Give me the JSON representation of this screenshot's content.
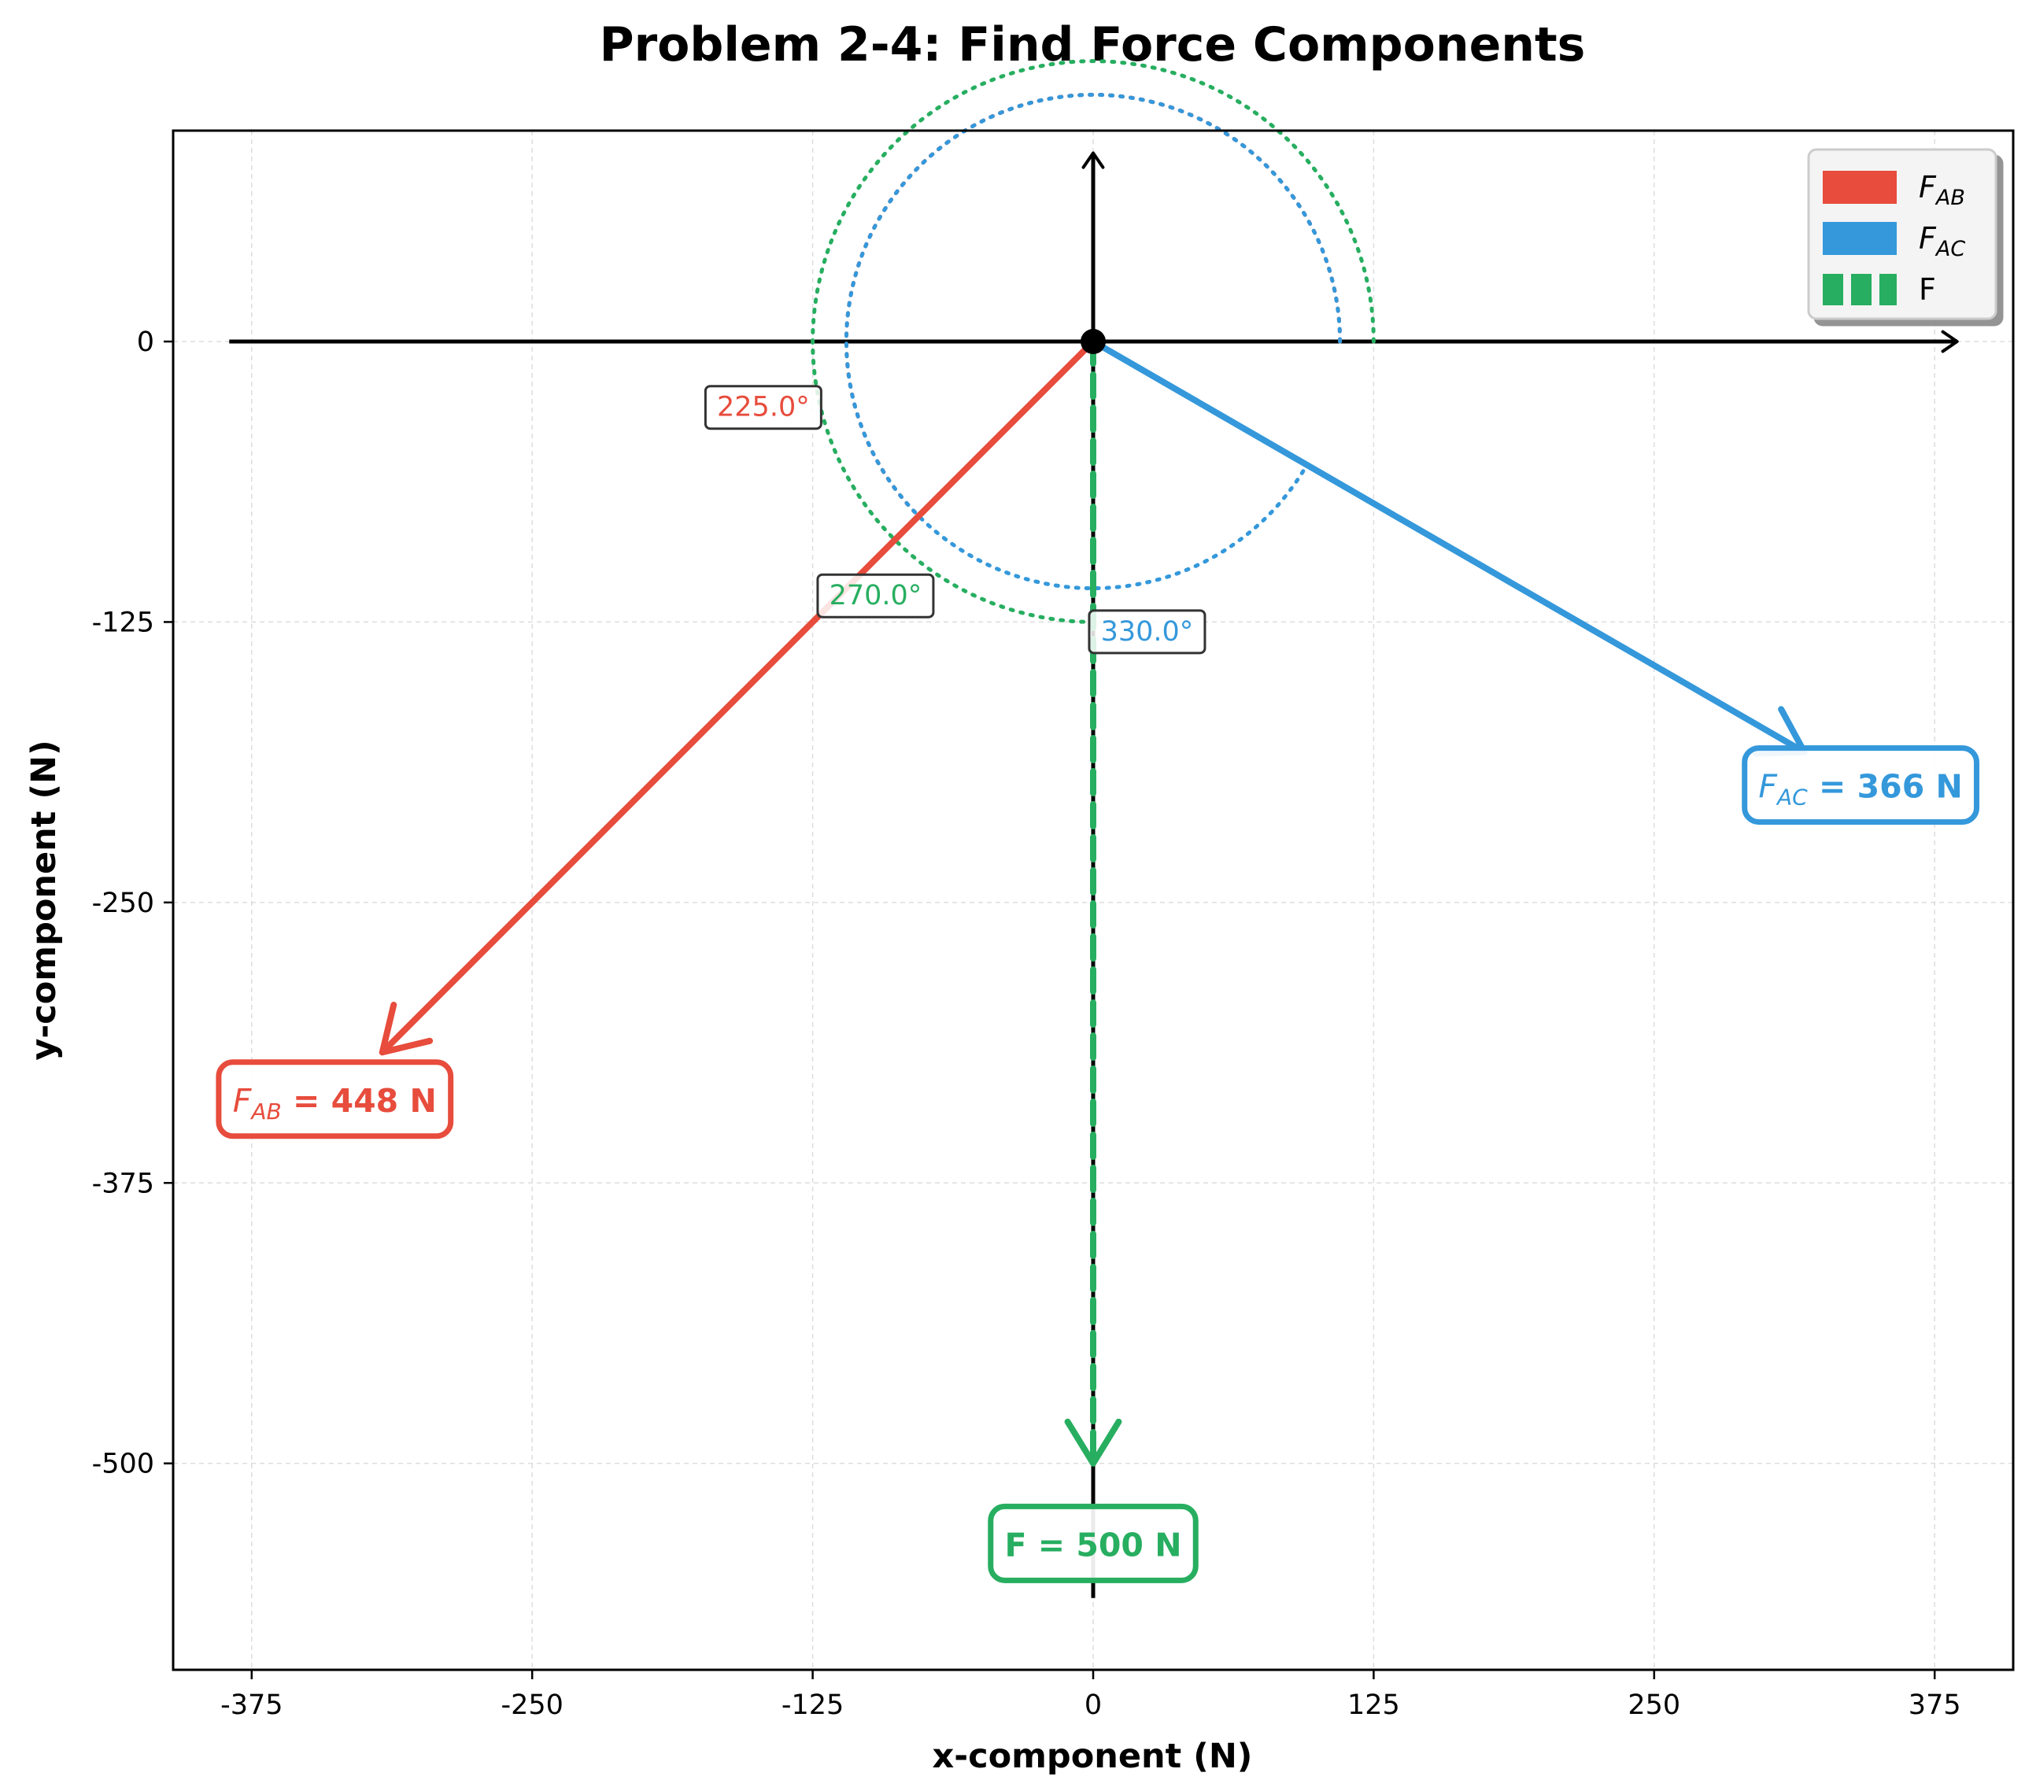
{
  "chart_data": {
    "type": "vector",
    "title": "Problem 2-4: Find Force Components",
    "xlabel": "x-component (N)",
    "ylabel": "y-component (N)",
    "xlim": [
      -410,
      410
    ],
    "ylim": [
      -592,
      94
    ],
    "xticks": [
      -375,
      -250,
      -125,
      0,
      125,
      250,
      375
    ],
    "xtick_labels": [
      "-375",
      "-250",
      "-125",
      "0",
      "125",
      "250",
      "375"
    ],
    "yticks": [
      0,
      -125,
      -250,
      -375,
      -500
    ],
    "ytick_labels": [
      "0",
      "-125",
      "-250",
      "-375",
      "-500"
    ],
    "grid": true,
    "legend_position": "top-right",
    "origin": [
      0,
      0
    ],
    "reference_axes": {
      "x_from": -385,
      "x_to": 385,
      "y_from": -560,
      "y_to": 84
    },
    "forces": [
      {
        "key": "fab",
        "legend_main": "F",
        "legend_sub": "AB",
        "label_main": "F",
        "label_sub": "AB",
        "label_value": " = 448 N",
        "magnitude": 448,
        "angle_deg": 225.0,
        "angle_label": "225.0°",
        "color": "#e74c3c",
        "dashed": false,
        "arc_radius": 110,
        "label_at": [
          -338,
          -338
        ],
        "angle_label_at": [
          -147,
          -29
        ]
      },
      {
        "key": "fac",
        "legend_main": "F",
        "legend_sub": "AC",
        "label_main": "F",
        "label_sub": "AC",
        "label_value": " = 366 N",
        "magnitude": 366,
        "angle_deg": 330.0,
        "angle_label": "330.0°",
        "color": "#3498db",
        "dashed": false,
        "arc_radius": 110,
        "label_at": [
          342,
          -198
        ],
        "angle_label_at": [
          24,
          -129
        ]
      },
      {
        "key": "f",
        "legend_main": "F",
        "legend_sub": "",
        "label_main": "",
        "label_sub": "",
        "label_value": "F = 500 N",
        "magnitude": 500,
        "angle_deg": 270.0,
        "angle_label": "270.0°",
        "color": "#27ae60",
        "dashed": true,
        "arc_radius": 125,
        "label_at": [
          0,
          -536
        ],
        "angle_label_at": [
          -97,
          -113
        ]
      }
    ]
  }
}
